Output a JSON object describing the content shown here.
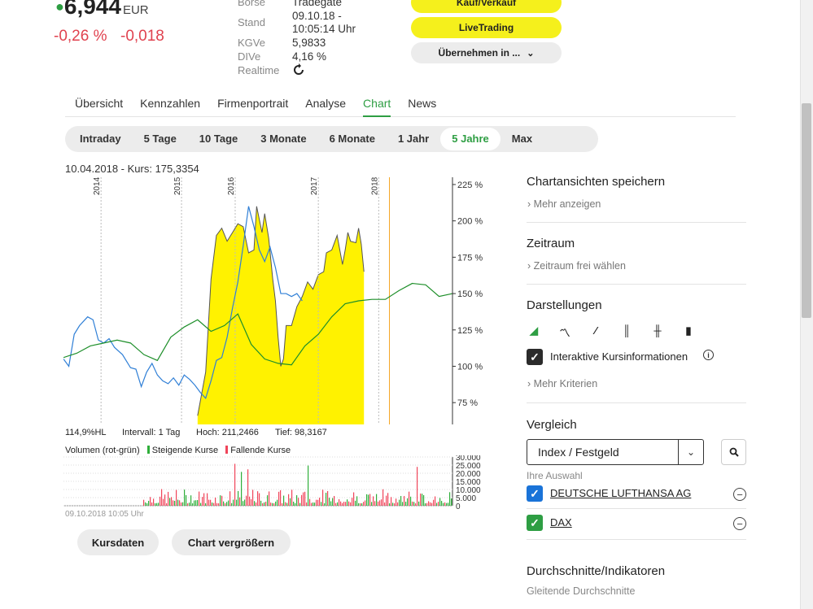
{
  "quote": {
    "price": "6,944",
    "currency": "EUR",
    "change_pct": "-0,26 %",
    "change_abs": "-0,018"
  },
  "meta": {
    "labels": {
      "exchange": "Börse",
      "time": "Stand",
      "kgve": "KGVe",
      "dive": "DIVe",
      "realtime": "Realtime"
    },
    "exchange": "Tradegate",
    "date": "09.10.18 -",
    "time": "10:05:14 Uhr",
    "kgve": "5,9833",
    "dive": "4,16 %"
  },
  "actions": {
    "buy_sell": "Kauf/Verkauf",
    "live_trading": "LiveTrading",
    "take_over": "Übernehmen in ..."
  },
  "tabs": [
    "Übersicht",
    "Kennzahlen",
    "Firmenportrait",
    "Analyse",
    "Chart",
    "News"
  ],
  "active_tab": "Chart",
  "ranges": [
    "Intraday",
    "5 Tage",
    "10 Tage",
    "3 Monate",
    "6 Monate",
    "1 Jahr",
    "5 Jahre",
    "Max"
  ],
  "active_range": "5 Jahre",
  "chart_info": "10.04.2018  -  Kurs: 175,3354",
  "stats": {
    "hl": "114,9%HL",
    "interval": "Intervall: 1 Tag",
    "high": "Hoch: 211,2466",
    "low": "Tief: 98,3167"
  },
  "volume_legend": {
    "title": "Volumen (rot-grün)",
    "rising": "Steigende Kurse",
    "falling": "Fallende Kurse"
  },
  "footer_date": "09.10.2018 10:05 Uhr",
  "buttons": {
    "kursdaten": "Kursdaten",
    "enlarge": "Chart vergrößern"
  },
  "panel": {
    "save_views": "Chartansichten speichern",
    "more": "Mehr anzeigen",
    "period": "Zeitraum",
    "period_link": "Zeitraum frei wählen",
    "displays": "Darstellungen",
    "interactive": "Interaktive Kursinformationen",
    "more_criteria": "Mehr Kriterien",
    "compare": "Vergleich",
    "compare_select": "Index / Festgeld",
    "your_selection": "Ihre Auswahl",
    "selection_items": [
      "DEUTSCHE LUFTHANSA AG",
      "DAX"
    ],
    "averages": "Durchschnitte/Indikatoren",
    "moving_avg": "Gleitende Durchschnitte"
  },
  "colors": {
    "accent_green": "#2e9e43",
    "negative": "#e0424f",
    "yellow": "#f5f01c",
    "series_blue": "#2f7fd6",
    "series_green": "#1e8f2a",
    "area_yellow": "#fff200"
  },
  "chart_data": [
    {
      "type": "area",
      "x_ticks": [
        "2014",
        "2015",
        "2016",
        "2017",
        "2018"
      ],
      "y_ticks": [
        "225 %",
        "200 %",
        "175 %",
        "150 %",
        "125 %",
        "100 %",
        "75 %"
      ],
      "ylim": [
        60,
        230
      ],
      "series": [
        {
          "type": "area",
          "points": [
            [
              0,
              66
            ],
            [
              6,
              96
            ],
            [
              10,
              160
            ],
            [
              14,
              190
            ],
            [
              18,
              195
            ],
            [
              22,
              186
            ],
            [
              26,
              192
            ],
            [
              30,
              198
            ],
            [
              34,
              196
            ],
            [
              38,
              178
            ],
            [
              42,
              180
            ],
            [
              44,
              210
            ],
            [
              48,
              192
            ],
            [
              50,
              205
            ],
            [
              53,
              188
            ],
            [
              56,
              160
            ],
            [
              58,
              145
            ],
            [
              60,
              120
            ],
            [
              62,
              100
            ],
            [
              64,
              105
            ],
            [
              66,
              128
            ],
            [
              70,
              128
            ],
            [
              74,
              141
            ],
            [
              78,
              148
            ],
            [
              82,
              158
            ],
            [
              86,
              153
            ],
            [
              90,
              163
            ],
            [
              94,
              165
            ],
            [
              96,
              178
            ],
            [
              100,
              180
            ],
            [
              104,
              190
            ],
            [
              108,
              170
            ],
            [
              110,
              180
            ],
            [
              112,
              192
            ],
            [
              114,
              186
            ],
            [
              118,
              185
            ],
            [
              120,
              195
            ],
            [
              122,
              184
            ],
            [
              124,
              165
            ]
          ],
          "x_range": [
            0,
            124
          ]
        },
        {
          "type": "line",
          "points": [
            [
              -100,
              105
            ],
            [
              -96,
              100
            ],
            [
              -92,
              122
            ],
            [
              -88,
              128
            ],
            [
              -82,
              134
            ],
            [
              -78,
              132
            ],
            [
              -74,
              118
            ],
            [
              -70,
              116
            ],
            [
              -66,
              119
            ],
            [
              -62,
              113
            ],
            [
              -56,
              108
            ],
            [
              -50,
              99
            ],
            [
              -46,
              98
            ],
            [
              -42,
              86
            ],
            [
              -38,
              96
            ],
            [
              -34,
              102
            ],
            [
              -30,
              94
            ],
            [
              -26,
              90
            ],
            [
              -22,
              88
            ],
            [
              -18,
              92
            ],
            [
              -14,
              87
            ],
            [
              -10,
              94
            ],
            [
              -6,
              91
            ],
            [
              -2,
              87
            ],
            [
              2,
              82
            ],
            [
              6,
              78
            ],
            [
              10,
              90
            ],
            [
              14,
              104
            ],
            [
              18,
              106
            ],
            [
              22,
              120
            ],
            [
              26,
              140
            ],
            [
              30,
              158
            ],
            [
              34,
              183
            ],
            [
              38,
              210
            ],
            [
              42,
              196
            ],
            [
              46,
              180
            ],
            [
              50,
              172
            ],
            [
              54,
              182
            ],
            [
              58,
              168
            ],
            [
              62,
              150
            ],
            [
              66,
              150
            ],
            [
              70,
              148
            ],
            [
              74,
              150
            ],
            [
              78,
              145
            ]
          ],
          "x_range": [
            -100,
            78
          ]
        },
        {
          "type": "line",
          "points": [
            [
              -100,
              106
            ],
            [
              -90,
              109
            ],
            [
              -80,
              114
            ],
            [
              -70,
              116
            ],
            [
              -60,
              118
            ],
            [
              -50,
              116
            ],
            [
              -40,
              108
            ],
            [
              -30,
              104
            ],
            [
              -20,
              120
            ],
            [
              -10,
              127
            ],
            [
              0,
              132
            ],
            [
              10,
              124
            ],
            [
              20,
              128
            ],
            [
              30,
              136
            ],
            [
              40,
              115
            ],
            [
              50,
              105
            ],
            [
              60,
              102
            ],
            [
              70,
              101
            ],
            [
              80,
              114
            ],
            [
              90,
              122
            ],
            [
              100,
              134
            ],
            [
              110,
              143
            ],
            [
              120,
              145
            ],
            [
              130,
              146
            ],
            [
              140,
              146
            ],
            [
              150,
              152
            ],
            [
              160,
              157
            ],
            [
              170,
              156
            ],
            [
              180,
              148
            ],
            [
              190,
              150
            ]
          ],
          "x_range": [
            -100,
            190
          ]
        }
      ]
    },
    {
      "type": "bar",
      "title": "Volumen (rot-grün)",
      "y_ticks": [
        "30.000",
        "25.000",
        "20.000",
        "15.000",
        "10.000",
        "5.000",
        "0"
      ],
      "ylim": [
        0,
        30000
      ]
    }
  ]
}
